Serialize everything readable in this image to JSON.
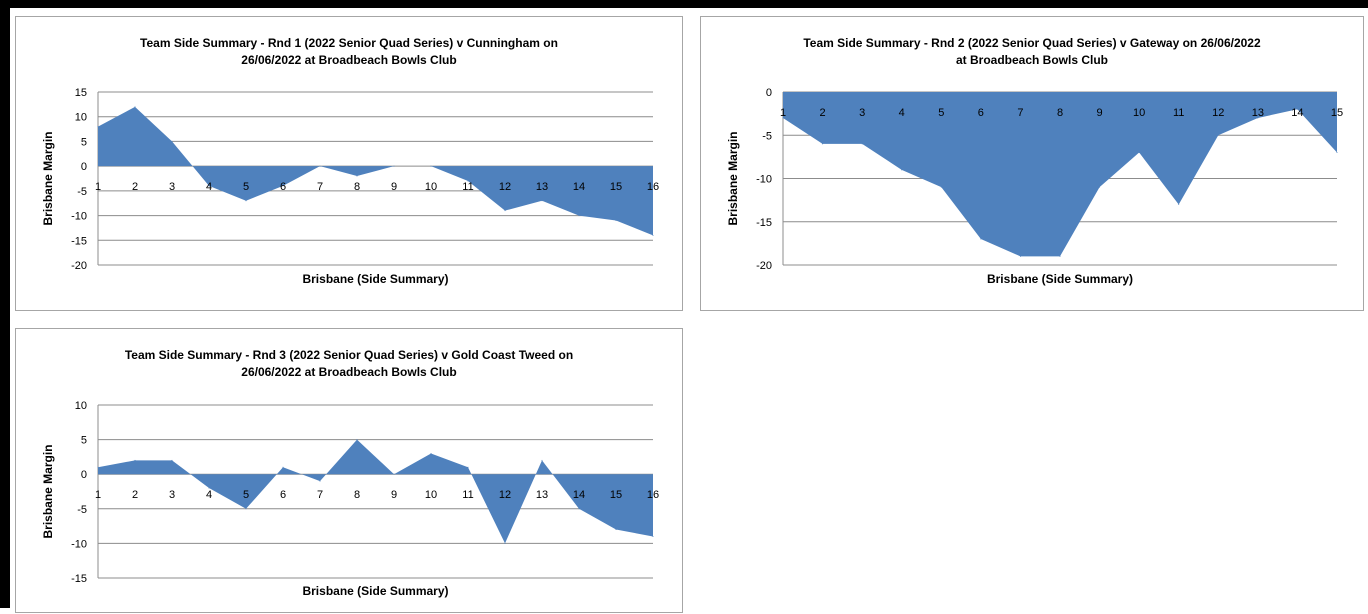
{
  "chart_data": [
    {
      "type": "area",
      "title_line1": "Team Side Summary - Rnd 1 (2022 Senior Quad Series) v Cunningham  on",
      "title_line2": "26/06/2022 at Broadbeach Bowls Club",
      "xlabel": "Brisbane (Side Summary)",
      "ylabel": "Brisbane  Margin",
      "ylim": [
        -20,
        15
      ],
      "ystep": 5,
      "x": [
        1,
        2,
        3,
        4,
        5,
        6,
        7,
        8,
        9,
        10,
        11,
        12,
        13,
        14,
        15,
        16
      ],
      "values": [
        8,
        12,
        5,
        -4,
        -7,
        -4,
        0,
        -2,
        0,
        0,
        -3,
        -9,
        -7,
        -10,
        -11,
        -14
      ],
      "color": "#4f81bd",
      "grid": true,
      "legend": "none"
    },
    {
      "type": "area",
      "title_line1": "Team Side Summary - Rnd 2 (2022 Senior Quad Series) v Gateway  on 26/06/2022",
      "title_line2": "at Broadbeach Bowls Club",
      "xlabel": "Brisbane (Side Summary)",
      "ylabel": "Brisbane  Margin",
      "ylim": [
        -20,
        0
      ],
      "ystep": 5,
      "x": [
        1,
        2,
        3,
        4,
        5,
        6,
        7,
        8,
        9,
        10,
        11,
        12,
        13,
        14,
        15
      ],
      "values": [
        -3,
        -6,
        -6,
        -9,
        -11,
        -17,
        -19,
        -19,
        -11,
        -7,
        -13,
        -5,
        -3,
        -2,
        -7
      ],
      "color": "#4f81bd",
      "grid": true,
      "legend": "none"
    },
    {
      "type": "area",
      "title_line1": "Team Side Summary - Rnd 3 (2022 Senior Quad Series) v Gold Coast Tweed  on",
      "title_line2": "26/06/2022 at Broadbeach Bowls Club",
      "xlabel": "Brisbane (Side Summary)",
      "ylabel": "Brisbane Margin",
      "ylim": [
        -15,
        10
      ],
      "ystep": 5,
      "x": [
        1,
        2,
        3,
        4,
        5,
        6,
        7,
        8,
        9,
        10,
        11,
        12,
        13,
        14,
        15,
        16
      ],
      "values": [
        1,
        2,
        2,
        -2,
        -5,
        1,
        -1,
        5,
        0,
        3,
        1,
        -10,
        2,
        -5,
        -8,
        -9
      ],
      "color": "#4f81bd",
      "grid": true,
      "legend": "none"
    }
  ]
}
